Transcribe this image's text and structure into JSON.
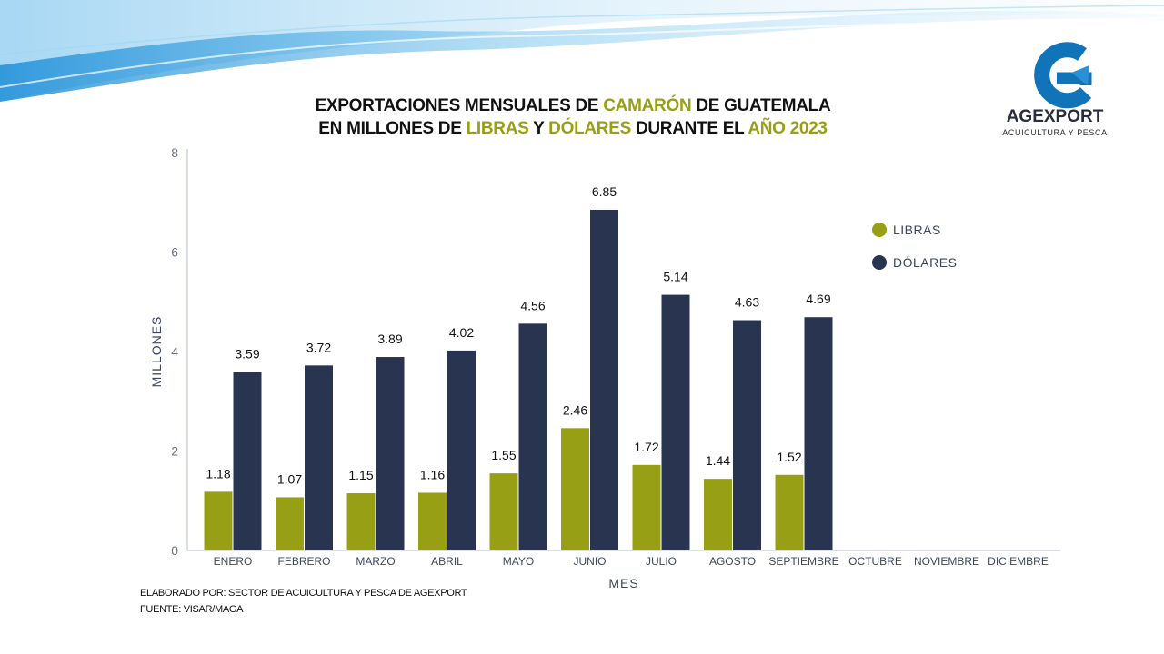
{
  "title": {
    "line1": [
      {
        "text": "EXPORTACIONES MENSUALES DE ",
        "highlight": false
      },
      {
        "text": "CAMARÓN",
        "highlight": true
      },
      {
        "text": " DE GUATEMALA",
        "highlight": false
      }
    ],
    "line2": [
      {
        "text": "EN MILLONES DE ",
        "highlight": false
      },
      {
        "text": "LIBRAS",
        "highlight": true
      },
      {
        "text": " Y ",
        "highlight": false
      },
      {
        "text": "DÓLARES",
        "highlight": true
      },
      {
        "text": " DURANTE EL ",
        "highlight": false
      },
      {
        "text": "AÑO 2023",
        "highlight": true
      }
    ]
  },
  "logo": {
    "name": "AGEXPORT",
    "subtitle": "ACUICULTURA Y PESCA",
    "icon": "agexport-g-logo"
  },
  "footer": {
    "elaborated_by": "ELABORADO POR: SECTOR DE ACUICULTURA Y PESCA DE AGEXPORT",
    "source": "FUENTE: VISAR/MAGA"
  },
  "colors": {
    "highlight": "#97a014",
    "libras": "#97a014",
    "dolares": "#293550",
    "axis_text": "#3d4660"
  },
  "chart_data": {
    "type": "bar",
    "categories": [
      "ENERO",
      "FEBRERO",
      "MARZO",
      "ABRIL",
      "MAYO",
      "JUNIO",
      "JULIO",
      "AGOSTO",
      "SEPTIEMBRE",
      "OCTUBRE",
      "NOVIEMBRE",
      "DICIEMBRE"
    ],
    "series": [
      {
        "name": "LIBRAS",
        "values": [
          1.18,
          1.07,
          1.15,
          1.16,
          1.55,
          2.46,
          1.72,
          1.44,
          1.52,
          null,
          null,
          null
        ]
      },
      {
        "name": "DÓLARES",
        "values": [
          3.59,
          3.72,
          3.89,
          4.02,
          4.56,
          6.85,
          5.14,
          4.63,
          4.69,
          null,
          null,
          null
        ]
      }
    ],
    "xlabel": "MES",
    "ylabel": "MILLONES",
    "ylim": [
      0,
      8
    ],
    "yticks": [
      0,
      2,
      4,
      6,
      8
    ],
    "grid": false,
    "legend_position": "right",
    "data_labels": true
  }
}
